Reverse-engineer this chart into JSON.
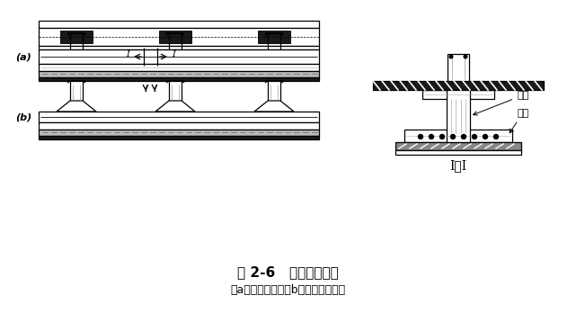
{
  "title": "图 2-6   柱下条形基础",
  "subtitle": "（a）等截面的；（b）柱位处加腋的",
  "label_a": "(a)",
  "label_b": "(b)",
  "label_section": "I－I",
  "annotation_rib": "肋梁",
  "annotation_flange": "翼板",
  "bg_color": "#ffffff",
  "lc": "#000000",
  "dark_fill": "#1a1a1a",
  "mid_fill": "#888888",
  "light_fill": "#cccccc"
}
